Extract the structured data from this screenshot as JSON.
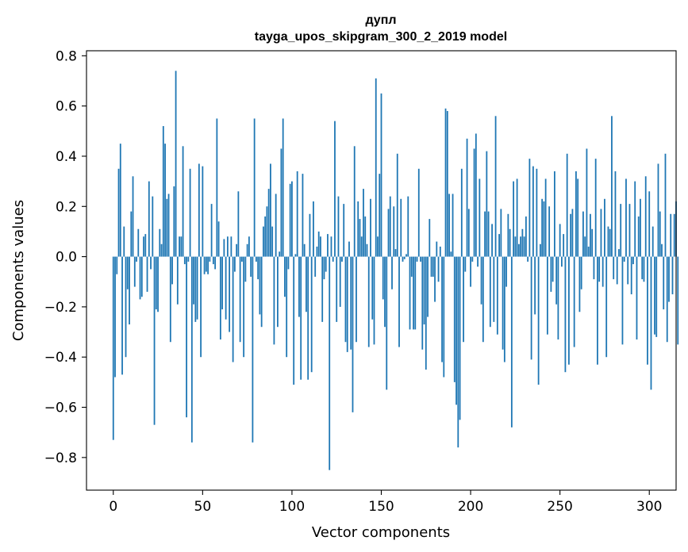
{
  "chart_data": {
    "type": "bar",
    "title": "дупл",
    "subtitle": "tayga_upos_skipgram_300_2_2019 model",
    "xlabel": "Vector components",
    "ylabel": "Components values",
    "xlim": [
      -15,
      315
    ],
    "ylim": [
      -0.93,
      0.82
    ],
    "xticks": [
      0,
      50,
      100,
      150,
      200,
      250,
      300
    ],
    "yticks": [
      -0.8,
      -0.6,
      -0.4,
      -0.2,
      0.0,
      0.2,
      0.4,
      0.6,
      0.8
    ],
    "xtick_labels": [
      "0",
      "50",
      "100",
      "150",
      "200",
      "250",
      "300"
    ],
    "ytick_labels": [
      "−0.8",
      "−0.6",
      "−0.4",
      "−0.2",
      "0.0",
      "0.2",
      "0.4",
      "0.6",
      "0.8"
    ],
    "bar_color": "#1f77b4",
    "values": [
      -0.73,
      -0.48,
      -0.07,
      0.35,
      0.45,
      -0.47,
      0.12,
      -0.4,
      -0.13,
      -0.27,
      0.18,
      0.32,
      -0.12,
      -0.02,
      0.11,
      -0.17,
      -0.16,
      0.08,
      0.09,
      -0.14,
      0.3,
      -0.05,
      0.24,
      -0.67,
      -0.21,
      -0.22,
      0.11,
      0.05,
      0.52,
      0.45,
      0.23,
      0.25,
      -0.34,
      -0.11,
      0.28,
      0.74,
      -0.19,
      0.08,
      0.08,
      0.44,
      -0.03,
      -0.64,
      -0.02,
      0.35,
      -0.74,
      -0.19,
      -0.26,
      -0.25,
      0.37,
      -0.4,
      0.36,
      -0.07,
      -0.06,
      -0.07,
      -0.02,
      0.21,
      -0.03,
      -0.05,
      0.55,
      0.14,
      -0.33,
      -0.21,
      0.07,
      -0.25,
      0.08,
      -0.3,
      0.08,
      -0.42,
      -0.06,
      0.05,
      0.26,
      -0.34,
      -0.02,
      -0.4,
      -0.1,
      0.05,
      0.08,
      -0.08,
      -0.74,
      0.55,
      -0.02,
      -0.09,
      -0.23,
      -0.28,
      0.12,
      0.16,
      0.2,
      0.27,
      0.37,
      0.12,
      -0.35,
      0.25,
      -0.28,
      0.02,
      0.43,
      0.55,
      -0.16,
      -0.4,
      -0.05,
      0.29,
      0.3,
      -0.51,
      0.01,
      0.34,
      -0.24,
      -0.49,
      0.33,
      0.05,
      -0.22,
      -0.49,
      0.17,
      -0.46,
      0.22,
      -0.08,
      0.04,
      0.1,
      0.08,
      -0.26,
      -0.09,
      -0.06,
      0.09,
      -0.85,
      0.08,
      -0.02,
      0.54,
      -0.26,
      0.24,
      -0.2,
      -0.02,
      0.21,
      -0.34,
      -0.38,
      0.06,
      -0.37,
      -0.62,
      0.44,
      -0.34,
      0.22,
      0.15,
      0.08,
      0.27,
      0.16,
      0.05,
      -0.36,
      0.23,
      -0.25,
      -0.35,
      0.71,
      0.08,
      0.33,
      0.65,
      -0.17,
      -0.28,
      -0.53,
      0.19,
      0.24,
      -0.13,
      0.2,
      0.03,
      0.41,
      -0.36,
      0.23,
      -0.02,
      -0.01,
      0.01,
      0.24,
      -0.29,
      -0.08,
      -0.29,
      -0.29,
      -0.02,
      0.35,
      -0.02,
      -0.37,
      -0.27,
      -0.45,
      -0.24,
      0.15,
      -0.08,
      -0.08,
      -0.18,
      0.06,
      -0.1,
      0.04,
      -0.42,
      -0.48,
      0.59,
      0.58,
      0.25,
      0.02,
      0.25,
      -0.5,
      -0.59,
      -0.76,
      -0.65,
      0.35,
      -0.34,
      -0.06,
      0.47,
      0.19,
      -0.12,
      -0.02,
      0.43,
      0.49,
      -0.04,
      0.31,
      -0.19,
      -0.34,
      0.18,
      0.42,
      0.18,
      -0.28,
      0.13,
      -0.26,
      0.56,
      -0.31,
      0.09,
      0.19,
      -0.37,
      -0.42,
      -0.12,
      0.17,
      0.11,
      -0.68,
      0.3,
      0.08,
      0.31,
      0.05,
      0.08,
      0.11,
      0.08,
      0.16,
      -0.02,
      0.39,
      -0.41,
      0.36,
      -0.23,
      0.35,
      -0.51,
      0.05,
      0.23,
      0.22,
      0.31,
      -0.31,
      0.2,
      -0.14,
      -0.1,
      0.34,
      -0.19,
      -0.33,
      0.13,
      -0.04,
      0.09,
      -0.46,
      0.41,
      -0.43,
      0.17,
      0.19,
      -0.36,
      0.34,
      0.31,
      -0.22,
      -0.13,
      0.18,
      0.08,
      0.43,
      0.04,
      0.17,
      0.11,
      -0.09,
      0.39,
      -0.43,
      -0.1,
      0.19,
      -0.12,
      0.23,
      -0.4,
      0.12,
      0.11,
      0.56,
      -0.09,
      0.34,
      -0.11,
      0.03,
      0.21,
      -0.35,
      -0.02,
      0.31,
      -0.11,
      0.21,
      -0.15,
      -0.03,
      0.3,
      -0.33,
      0.16,
      0.23,
      -0.09,
      -0.1,
      0.32,
      -0.43,
      0.26,
      -0.53,
      0.12,
      -0.31,
      -0.32,
      0.37,
      0.18,
      0.05,
      -0.21,
      0.41,
      -0.34,
      -0.18,
      0.17,
      -0.15,
      0.17,
      0.22,
      -0.35
    ]
  }
}
